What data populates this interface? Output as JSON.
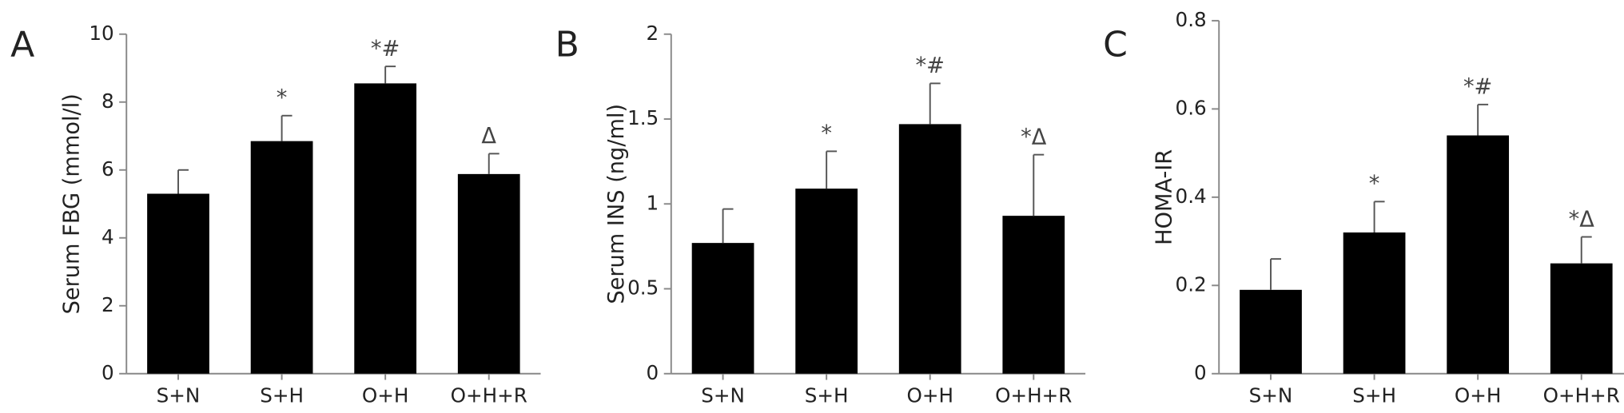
{
  "chart_data": [
    {
      "type": "bar",
      "panel": "A",
      "ylabel": "Serum FBG (mmol/l)",
      "categories": [
        "S+N",
        "S+H",
        "O+H",
        "O+H+R"
      ],
      "values": [
        5.3,
        6.85,
        8.55,
        5.88
      ],
      "errors": [
        0.7,
        0.75,
        0.5,
        0.6
      ],
      "annotations": [
        null,
        "*",
        "*#",
        "Δ"
      ],
      "color": "#000000",
      "ylim": [
        0,
        10
      ],
      "yticks": [
        0,
        2,
        4,
        6,
        8,
        10
      ]
    },
    {
      "type": "bar",
      "panel": "B",
      "ylabel": "Serum INS (ng/ml)",
      "categories": [
        "S+N",
        "S+H",
        "O+H",
        "O+H+R"
      ],
      "values": [
        0.77,
        1.09,
        1.47,
        0.93
      ],
      "errors": [
        0.2,
        0.22,
        0.24,
        0.36
      ],
      "annotations": [
        null,
        "*",
        "*#",
        "*Δ"
      ],
      "color": "#000000",
      "ylim": [
        0,
        2
      ],
      "yticks": [
        0,
        0.5,
        1,
        1.5,
        2
      ]
    },
    {
      "type": "bar",
      "panel": "C",
      "ylabel": "HOMA-IR",
      "categories": [
        "S+N",
        "S+H",
        "O+H",
        "O+H+R"
      ],
      "values": [
        0.19,
        0.32,
        0.54,
        0.25
      ],
      "errors": [
        0.07,
        0.07,
        0.07,
        0.06
      ],
      "annotations": [
        null,
        "*",
        "*#",
        "*Δ"
      ],
      "color": "#000000",
      "ylim": [
        0,
        0.8
      ],
      "yticks": [
        0,
        0.2,
        0.4,
        0.6,
        0.8
      ]
    }
  ]
}
